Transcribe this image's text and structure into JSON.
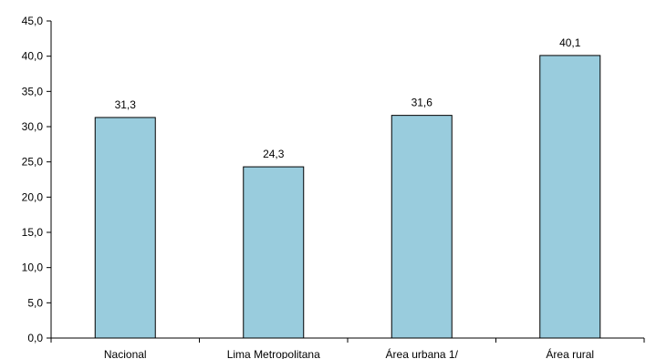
{
  "chart_data": {
    "type": "bar",
    "categories": [
      "Nacional",
      "Lima Metropolitana",
      "Área urbana 1/",
      "Área rural"
    ],
    "values": [
      31.3,
      24.3,
      31.6,
      40.1
    ],
    "data_labels": [
      "31,3",
      "24,3",
      "31,6",
      "40,1"
    ],
    "ylim": [
      0,
      45
    ],
    "yticks": [
      0,
      5,
      10,
      15,
      20,
      25,
      30,
      35,
      40,
      45
    ],
    "ytick_labels": [
      "0,0",
      "5,0",
      "10,0",
      "15,0",
      "20,0",
      "25,0",
      "30,0",
      "35,0",
      "40,0",
      "45,0"
    ],
    "grid": false,
    "bar_color": "#99CCDD",
    "bar_edge_color": "#000000"
  }
}
